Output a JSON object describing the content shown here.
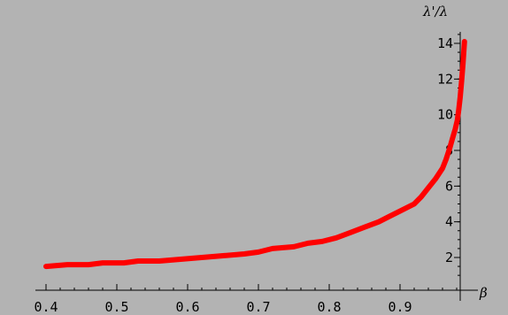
{
  "colors": {
    "background": "#b3b3b3",
    "axis": "#000000",
    "curve": "#ff0000"
  },
  "chart_data": {
    "type": "line",
    "title": "",
    "xlabel": "β",
    "ylabel": "λ'/λ",
    "xlim": [
      0.38,
      1.0
    ],
    "ylim": [
      0.8,
      15.0
    ],
    "grid": false,
    "legend": "none",
    "x_ticks": [
      0.4,
      0.5,
      0.6,
      0.7,
      0.8,
      0.9
    ],
    "x_tick_labels": [
      "0.4",
      "0.5",
      "0.6",
      "0.7",
      "0.8",
      "0.9"
    ],
    "y_ticks": [
      2,
      4,
      6,
      8,
      10,
      12,
      14
    ],
    "y_tick_labels": [
      "2",
      "4",
      "6",
      "8",
      "10",
      "12",
      "14"
    ],
    "series": [
      {
        "color": "#ff0000",
        "x": [
          0.4,
          0.43,
          0.46,
          0.48,
          0.51,
          0.53,
          0.56,
          0.59,
          0.62,
          0.65,
          0.68,
          0.7,
          0.72,
          0.75,
          0.77,
          0.79,
          0.81,
          0.83,
          0.85,
          0.87,
          0.885,
          0.9,
          0.92,
          0.93,
          0.94,
          0.95,
          0.96,
          0.965,
          0.97,
          0.975,
          0.978,
          0.981,
          0.983,
          0.985,
          0.987,
          0.989,
          0.991
        ],
        "y": [
          1.5,
          1.6,
          1.6,
          1.7,
          1.7,
          1.8,
          1.8,
          1.9,
          2.0,
          2.1,
          2.2,
          2.3,
          2.5,
          2.6,
          2.8,
          2.9,
          3.1,
          3.4,
          3.7,
          4.0,
          4.3,
          4.6,
          5.0,
          5.4,
          5.9,
          6.4,
          7.0,
          7.5,
          8.1,
          8.8,
          9.2,
          9.7,
          10.3,
          11.0,
          11.9,
          12.9,
          14.1
        ]
      }
    ]
  }
}
